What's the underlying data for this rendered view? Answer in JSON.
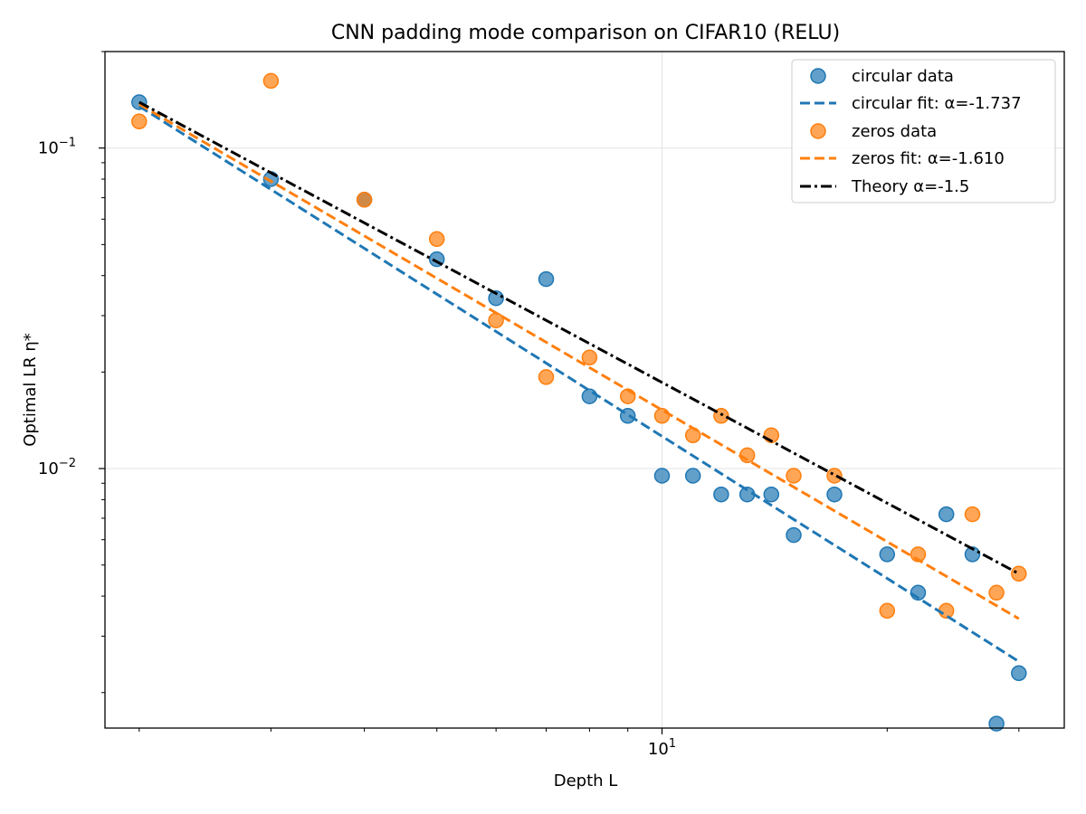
{
  "chart_data": {
    "type": "scatter",
    "title": "CNN padding mode comparison on CIFAR10 (RELU)",
    "xlabel": "Depth L",
    "ylabel": "Optimal LR η*",
    "xscale": "log",
    "yscale": "log",
    "xlim": [
      1.8,
      34.5
    ],
    "ylim": [
      0.00155,
      0.2
    ],
    "grid": true,
    "legend_position": "top-right",
    "x_tick_labels": [
      {
        "base": "10",
        "exp": "1",
        "value": 10
      }
    ],
    "y_tick_labels": [
      {
        "base": "10",
        "exp": "−1",
        "value": 0.1
      },
      {
        "base": "10",
        "exp": "−2",
        "value": 0.01
      }
    ],
    "series": [
      {
        "name": "circular data",
        "kind": "scatter",
        "color": "#1f77b4",
        "points": [
          [
            2,
            0.139
          ],
          [
            3,
            0.08
          ],
          [
            4,
            0.069
          ],
          [
            5,
            0.045
          ],
          [
            6,
            0.034
          ],
          [
            7,
            0.039
          ],
          [
            8,
            0.0168
          ],
          [
            9,
            0.0146
          ],
          [
            10,
            0.0095
          ],
          [
            11,
            0.0095
          ],
          [
            12,
            0.0083
          ],
          [
            13,
            0.0083
          ],
          [
            14,
            0.0083
          ],
          [
            15,
            0.0062
          ],
          [
            17,
            0.0083
          ],
          [
            20,
            0.0054
          ],
          [
            22,
            0.0041
          ],
          [
            24,
            0.0072
          ],
          [
            26,
            0.0054
          ],
          [
            28,
            0.0016
          ],
          [
            30,
            0.0023
          ]
        ]
      },
      {
        "name": "circular fit: α=-1.737",
        "kind": "line",
        "style": "dashed",
        "color": "#1f77b4",
        "alpha": -1.737,
        "points": [
          [
            2,
            0.135
          ],
          [
            30,
            0.0025
          ]
        ]
      },
      {
        "name": "zeros data",
        "kind": "scatter",
        "color": "#ff7f0e",
        "points": [
          [
            2,
            0.121
          ],
          [
            3,
            0.162
          ],
          [
            4,
            0.069
          ],
          [
            5,
            0.052
          ],
          [
            6,
            0.029
          ],
          [
            7,
            0.0193
          ],
          [
            8,
            0.0222
          ],
          [
            9,
            0.0168
          ],
          [
            10,
            0.0146
          ],
          [
            11,
            0.0127
          ],
          [
            12,
            0.0146
          ],
          [
            13,
            0.011
          ],
          [
            14,
            0.0127
          ],
          [
            15,
            0.0095
          ],
          [
            17,
            0.0095
          ],
          [
            20,
            0.0036
          ],
          [
            22,
            0.0054
          ],
          [
            24,
            0.0036
          ],
          [
            26,
            0.0072
          ],
          [
            28,
            0.0041
          ],
          [
            30,
            0.0047
          ]
        ]
      },
      {
        "name": "zeros fit: α=-1.610",
        "kind": "line",
        "style": "dashed",
        "color": "#ff7f0e",
        "alpha": -1.61,
        "points": [
          [
            2,
            0.137
          ],
          [
            30,
            0.0034
          ]
        ]
      },
      {
        "name": "Theory α=-1.5",
        "kind": "line",
        "style": "dashdot",
        "color": "#000000",
        "alpha": -1.5,
        "points": [
          [
            2,
            0.139
          ],
          [
            30,
            0.0047
          ]
        ]
      }
    ]
  }
}
